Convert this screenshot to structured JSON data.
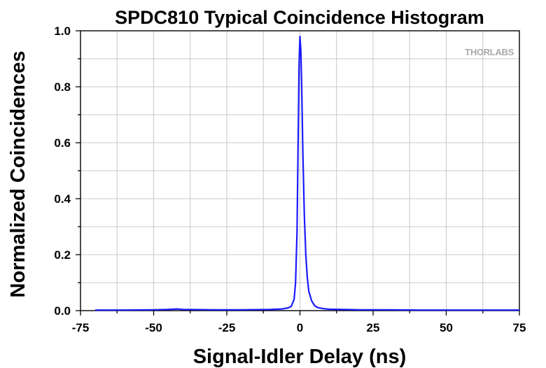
{
  "chart_data": {
    "type": "line",
    "title": "SPDC810 Typical Coincidence Histogram",
    "xlabel": "Signal-Idler Delay (ns)",
    "ylabel": "Normalized Coincidences",
    "xlim": [
      -75,
      75
    ],
    "ylim": [
      0,
      1
    ],
    "xticks": [
      "-75",
      "-50",
      "-25",
      "0",
      "25",
      "50",
      "75"
    ],
    "yticks": [
      "0.0",
      "0.2",
      "0.4",
      "0.6",
      "0.8",
      "1.0"
    ],
    "grid": true,
    "legend": "none",
    "line_color": "#1a1aff",
    "watermark": "THORLABS",
    "series": [
      {
        "x": [
          -70,
          -60,
          -50,
          -45,
          -42,
          -40,
          -30,
          -20,
          -10,
          -6,
          -4,
          -3,
          -2,
          -1.5,
          -1,
          -0.6,
          -0.3,
          0,
          0.3,
          0.6,
          1,
          1.5,
          2,
          2.5,
          3,
          4,
          5,
          6,
          8,
          10,
          20,
          30,
          40,
          50,
          60,
          70,
          75
        ],
        "y": [
          0.002,
          0.002,
          0.003,
          0.004,
          0.006,
          0.004,
          0.003,
          0.003,
          0.004,
          0.006,
          0.01,
          0.015,
          0.04,
          0.1,
          0.28,
          0.62,
          0.88,
          0.98,
          0.93,
          0.8,
          0.56,
          0.34,
          0.2,
          0.12,
          0.07,
          0.035,
          0.018,
          0.011,
          0.007,
          0.005,
          0.003,
          0.003,
          0.002,
          0.002,
          0.002,
          0.002,
          0.002
        ]
      }
    ]
  }
}
